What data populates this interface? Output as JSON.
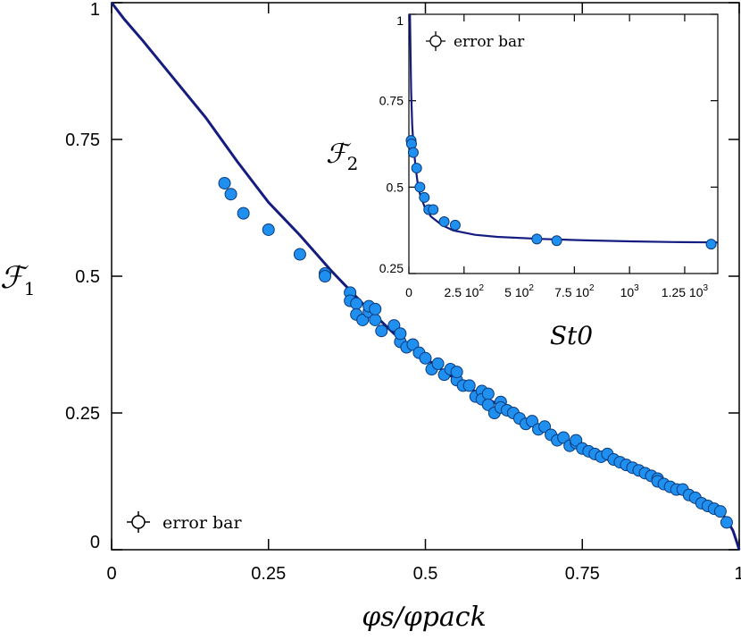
{
  "chart_data": [
    {
      "type": "scatter",
      "title": "",
      "xlabel": "φs/φpack",
      "ylabel": "ℱ1",
      "xlim": [
        0,
        1
      ],
      "ylim": [
        0,
        1
      ],
      "x_ticks": [
        "0",
        "0.25",
        "0.5",
        "0.75",
        "1"
      ],
      "y_ticks": [
        "0",
        "0.25",
        "0.5",
        "0.75",
        "1"
      ],
      "legend": {
        "label": "error bar",
        "position": "bottom-left"
      },
      "colors": {
        "marker": "#1f8ff0",
        "line": "#141c80"
      },
      "series": [
        {
          "kind": "points",
          "x": [
            0.18,
            0.19,
            0.21,
            0.25,
            0.3,
            0.34,
            0.34,
            0.38,
            0.38,
            0.39,
            0.39,
            0.4,
            0.41,
            0.41,
            0.42,
            0.42,
            0.43,
            0.45,
            0.46,
            0.46,
            0.47,
            0.48,
            0.49,
            0.5,
            0.51,
            0.52,
            0.53,
            0.54,
            0.55,
            0.55,
            0.56,
            0.57,
            0.58,
            0.59,
            0.59,
            0.6,
            0.6,
            0.61,
            0.62,
            0.62,
            0.63,
            0.64,
            0.65,
            0.66,
            0.67,
            0.68,
            0.69,
            0.7,
            0.71,
            0.72,
            0.73,
            0.74,
            0.74,
            0.75,
            0.76,
            0.77,
            0.78,
            0.79,
            0.8,
            0.81,
            0.82,
            0.83,
            0.84,
            0.85,
            0.86,
            0.87,
            0.87,
            0.88,
            0.89,
            0.9,
            0.91,
            0.92,
            0.93,
            0.94,
            0.95,
            0.96,
            0.97,
            0.98
          ],
          "y": [
            0.67,
            0.65,
            0.615,
            0.585,
            0.54,
            0.505,
            0.5,
            0.47,
            0.455,
            0.45,
            0.43,
            0.42,
            0.435,
            0.445,
            0.42,
            0.44,
            0.4,
            0.41,
            0.38,
            0.395,
            0.37,
            0.375,
            0.36,
            0.35,
            0.33,
            0.34,
            0.32,
            0.33,
            0.31,
            0.325,
            0.3,
            0.3,
            0.28,
            0.29,
            0.275,
            0.285,
            0.265,
            0.25,
            0.27,
            0.26,
            0.255,
            0.25,
            0.24,
            0.23,
            0.235,
            0.22,
            0.225,
            0.21,
            0.2,
            0.205,
            0.19,
            0.195,
            0.2,
            0.185,
            0.18,
            0.175,
            0.17,
            0.175,
            0.165,
            0.16,
            0.155,
            0.15,
            0.145,
            0.14,
            0.135,
            0.13,
            0.125,
            0.12,
            0.115,
            0.11,
            0.11,
            0.1,
            0.095,
            0.085,
            0.08,
            0.075,
            0.07,
            0.05
          ]
        },
        {
          "kind": "fit",
          "x": [
            0,
            0.02,
            0.05,
            0.1,
            0.15,
            0.2,
            0.25,
            0.3,
            0.35,
            0.4,
            0.45,
            0.5,
            0.55,
            0.6,
            0.65,
            0.7,
            0.75,
            0.8,
            0.85,
            0.9,
            0.93,
            0.95,
            0.97,
            0.98,
            0.99,
            0.995,
            1.0
          ],
          "y": [
            1.0,
            0.97,
            0.93,
            0.86,
            0.79,
            0.71,
            0.635,
            0.575,
            0.51,
            0.45,
            0.395,
            0.35,
            0.31,
            0.275,
            0.245,
            0.215,
            0.185,
            0.16,
            0.14,
            0.115,
            0.097,
            0.085,
            0.07,
            0.055,
            0.035,
            0.018,
            0.0
          ]
        }
      ]
    },
    {
      "type": "scatter",
      "title": "",
      "xlabel": "St0",
      "ylabel": "ℱ2",
      "xlim": [
        0,
        1400
      ],
      "ylim": [
        0.25,
        1
      ],
      "x_tick_labels": [
        {
          "value": 0,
          "mantissa": "0",
          "power": ""
        },
        {
          "value": 250,
          "mantissa": "2.5 10",
          "power": "2"
        },
        {
          "value": 500,
          "mantissa": "5 10",
          "power": "2"
        },
        {
          "value": 750,
          "mantissa": "7.5 10",
          "power": "2"
        },
        {
          "value": 1000,
          "mantissa": "10",
          "power": "3"
        },
        {
          "value": 1250,
          "mantissa": "1.25 10",
          "power": "3"
        }
      ],
      "y_ticks": [
        "0.25",
        "0.5",
        "0.75",
        "1"
      ],
      "legend": {
        "label": "error bar",
        "position": "top-left"
      },
      "series": [
        {
          "kind": "points",
          "x": [
            10,
            12,
            20,
            35,
            50,
            70,
            90,
            110,
            160,
            210,
            580,
            670,
            1370
          ],
          "y": [
            0.635,
            0.625,
            0.6,
            0.555,
            0.5,
            0.47,
            0.435,
            0.435,
            0.4,
            0.39,
            0.35,
            0.345,
            0.335
          ]
        },
        {
          "kind": "fit",
          "x": [
            5,
            10,
            15,
            20,
            30,
            40,
            50,
            70,
            100,
            150,
            200,
            300,
            400,
            600,
            800,
            1000,
            1200,
            1400
          ],
          "y": [
            1.0,
            0.78,
            0.68,
            0.63,
            0.56,
            0.51,
            0.48,
            0.445,
            0.415,
            0.39,
            0.375,
            0.362,
            0.356,
            0.35,
            0.346,
            0.343,
            0.341,
            0.34
          ]
        }
      ]
    }
  ]
}
